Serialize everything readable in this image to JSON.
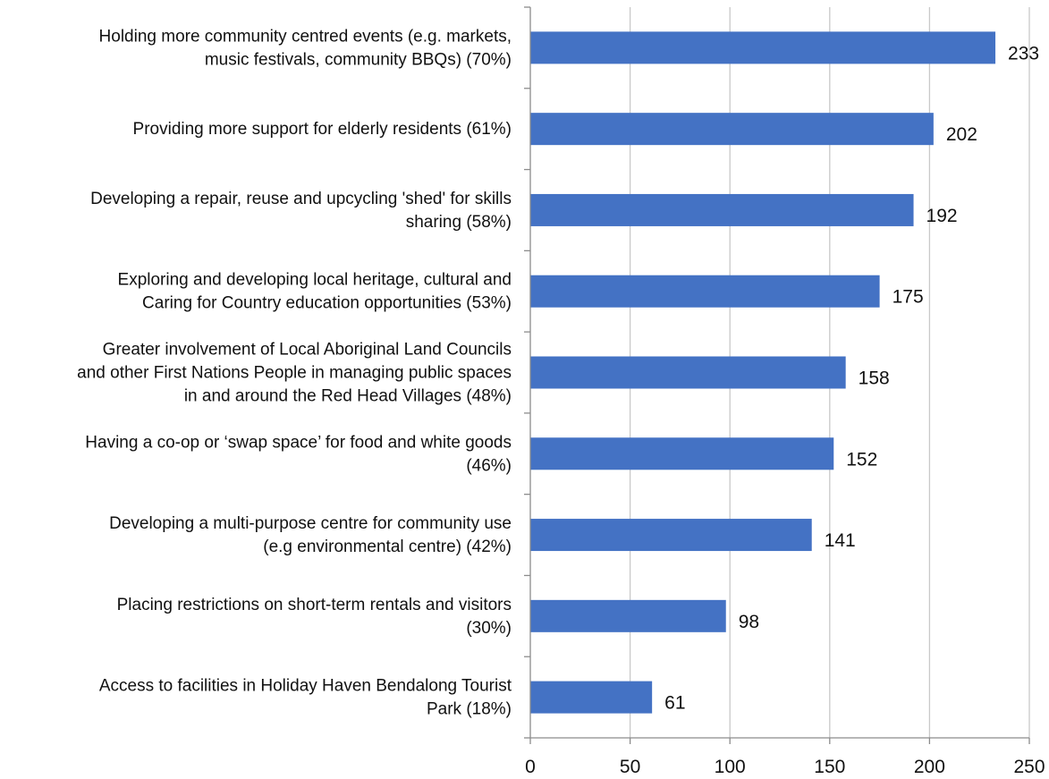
{
  "chart_data": {
    "type": "bar",
    "orientation": "horizontal",
    "title": "",
    "xlabel": "",
    "ylabel": "",
    "xlim": [
      0,
      250
    ],
    "xticks": [
      0,
      50,
      100,
      150,
      200,
      250
    ],
    "grid": true,
    "bar_color": "#4472c4",
    "categories": [
      [
        "Holding more community centred events (e.g. markets,",
        "music festivals, community BBQs) (70%)"
      ],
      [
        "Providing more support for elderly residents (61%)"
      ],
      [
        "Developing a repair, reuse and upcycling 'shed' for skills",
        "sharing (58%)"
      ],
      [
        "Exploring and developing local heritage, cultural and",
        "Caring for Country education opportunities (53%)"
      ],
      [
        "Greater involvement of Local Aboriginal Land Councils",
        "and other First Nations People in managing public spaces",
        "in and around the Red Head Villages (48%)"
      ],
      [
        "Having a co-op or ‘swap space’ for food and white goods",
        "(46%)"
      ],
      [
        "Developing a multi-purpose centre for community use",
        "(e.g environmental centre) (42%)"
      ],
      [
        "Placing restrictions on short-term rentals and visitors",
        "(30%)"
      ],
      [
        "Access to facilities in Holiday Haven Bendalong Tourist",
        "Park (18%)"
      ]
    ],
    "values": [
      233,
      202,
      192,
      175,
      158,
      152,
      141,
      98,
      61
    ]
  }
}
